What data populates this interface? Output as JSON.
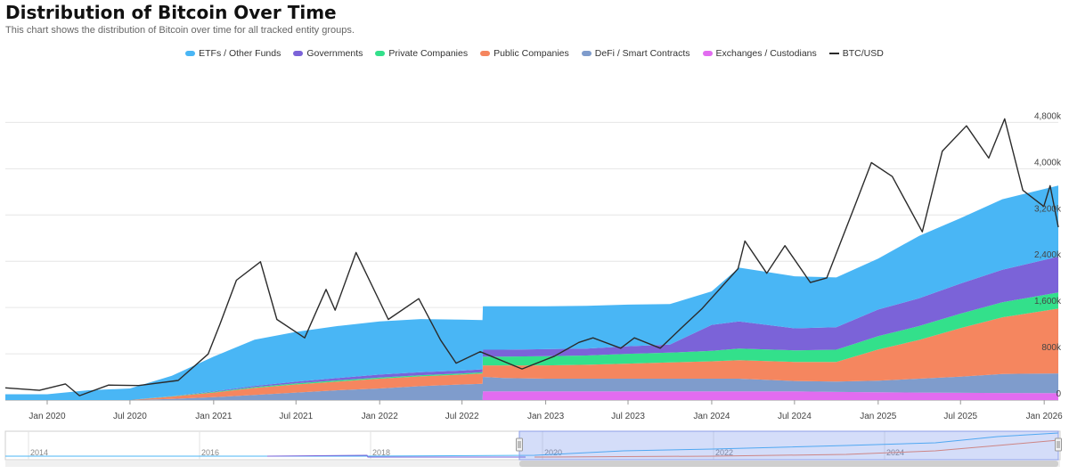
{
  "header": {
    "title": "Distribution of Bitcoin Over Time",
    "subtitle": "This chart shows the distribution of Bitcoin over time for all tracked entity groups."
  },
  "chart_data": {
    "type": "area",
    "title": "Distribution of Bitcoin Over Time",
    "x_unit": "date",
    "x_ticks": [
      "Jan 2020",
      "Jul 2020",
      "Jan 2021",
      "Jul 2021",
      "Jan 2022",
      "Jul 2022",
      "Jan 2023",
      "Jul 2023",
      "Jan 2024",
      "Jul 2024",
      "Jan 2025",
      "Jul 2025",
      "Jan 2026"
    ],
    "x_range": [
      "2019-10-01",
      "2026-02-01"
    ],
    "y_right_ticks": [
      "0",
      "800k",
      "1,600k",
      "2,400k",
      "3,200k",
      "4,000k",
      "4,800k"
    ],
    "y_range": [
      0,
      4800000
    ],
    "stacked": true,
    "grid": true,
    "legend_position": "top-center",
    "x": [
      "2019-10-01",
      "2020-01-01",
      "2020-04-01",
      "2020-07-01",
      "2020-10-01",
      "2021-01-01",
      "2021-04-01",
      "2021-07-01",
      "2021-10-01",
      "2022-01-01",
      "2022-04-01",
      "2022-07-01",
      "2022-08-15",
      "2022-08-16",
      "2022-10-01",
      "2023-01-01",
      "2023-04-01",
      "2023-07-01",
      "2023-10-01",
      "2024-01-01",
      "2024-03-01",
      "2024-07-01",
      "2024-10-01",
      "2025-01-01",
      "2025-04-01",
      "2025-07-01",
      "2025-10-01",
      "2026-02-01"
    ],
    "series": [
      {
        "name": "Exchanges / Custodians",
        "color": "#e26cf0",
        "values": [
          0,
          0,
          0,
          0,
          0,
          0,
          0,
          0,
          0,
          0,
          0,
          0,
          0,
          150000,
          150000,
          150000,
          150000,
          150000,
          150000,
          150000,
          150000,
          150000,
          140000,
          135000,
          130000,
          125000,
          122000,
          120000
        ]
      },
      {
        "name": "DeFi / Smart Contracts",
        "color": "#7f9ccc",
        "values": [
          0,
          0,
          0,
          0,
          20000,
          50000,
          90000,
          130000,
          170000,
          200000,
          240000,
          270000,
          280000,
          250000,
          230000,
          220000,
          220000,
          220000,
          220000,
          220000,
          220000,
          180000,
          180000,
          200000,
          240000,
          280000,
          330000,
          340000
        ]
      },
      {
        "name": "Public Companies",
        "color": "#f5865f",
        "values": [
          0,
          0,
          0,
          0,
          40000,
          80000,
          120000,
          140000,
          150000,
          170000,
          170000,
          170000,
          180000,
          200000,
          220000,
          230000,
          240000,
          260000,
          280000,
          300000,
          320000,
          330000,
          340000,
          540000,
          670000,
          840000,
          980000,
          1120000
        ]
      },
      {
        "name": "Private Companies",
        "color": "#33e08b",
        "values": [
          0,
          0,
          0,
          0,
          5000,
          10000,
          15000,
          18000,
          20000,
          20000,
          20000,
          20000,
          22000,
          150000,
          150000,
          160000,
          160000,
          170000,
          170000,
          180000,
          200000,
          200000,
          210000,
          230000,
          240000,
          250000,
          260000,
          280000
        ]
      },
      {
        "name": "Governments",
        "color": "#7b63d8",
        "values": [
          0,
          0,
          0,
          0,
          5000,
          10000,
          20000,
          30000,
          40000,
          50000,
          50000,
          50000,
          50000,
          120000,
          120000,
          120000,
          120000,
          130000,
          140000,
          450000,
          470000,
          380000,
          390000,
          460000,
          480000,
          520000,
          560000,
          620000
        ]
      },
      {
        "name": "ETFs / Other Funds",
        "color": "#49b6f5",
        "values": [
          100000,
          100000,
          170000,
          200000,
          350000,
          600000,
          800000,
          860000,
          900000,
          920000,
          920000,
          880000,
          850000,
          750000,
          750000,
          740000,
          740000,
          720000,
          700000,
          580000,
          930000,
          900000,
          860000,
          880000,
          1080000,
          1130000,
          1220000,
          1230000
        ]
      }
    ],
    "btc_usd": {
      "name": "BTC/USD",
      "color": "#2b2b2b",
      "points": [
        [
          "2019-10-01",
          8300
        ],
        [
          "2019-12-15",
          7200
        ],
        [
          "2020-02-10",
          10000
        ],
        [
          "2020-03-12",
          4900
        ],
        [
          "2020-05-15",
          9500
        ],
        [
          "2020-07-20",
          9300
        ],
        [
          "2020-10-15",
          11500
        ],
        [
          "2020-12-20",
          23000
        ],
        [
          "2021-01-15",
          36000
        ],
        [
          "2021-02-20",
          55000
        ],
        [
          "2021-04-14",
          63000
        ],
        [
          "2021-05-20",
          38000
        ],
        [
          "2021-07-20",
          30000
        ],
        [
          "2021-09-05",
          51000
        ],
        [
          "2021-09-25",
          42000
        ],
        [
          "2021-11-10",
          67000
        ],
        [
          "2022-01-20",
          38000
        ],
        [
          "2022-03-28",
          47000
        ],
        [
          "2022-05-15",
          29000
        ],
        [
          "2022-06-18",
          19000
        ],
        [
          "2022-08-10",
          24000
        ],
        [
          "2022-11-10",
          16500
        ],
        [
          "2023-01-20",
          22000
        ],
        [
          "2023-03-15",
          28000
        ],
        [
          "2023-04-15",
          30000
        ],
        [
          "2023-06-15",
          25500
        ],
        [
          "2023-07-15",
          30000
        ],
        [
          "2023-09-10",
          25500
        ],
        [
          "2023-10-25",
          34000
        ],
        [
          "2023-12-10",
          42500
        ],
        [
          "2024-02-28",
          60000
        ],
        [
          "2024-03-14",
          72000
        ],
        [
          "2024-05-01",
          58000
        ],
        [
          "2024-06-10",
          70000
        ],
        [
          "2024-08-05",
          54000
        ],
        [
          "2024-09-10",
          56000
        ],
        [
          "2024-11-12",
          88000
        ],
        [
          "2024-12-17",
          106000
        ],
        [
          "2025-02-01",
          100000
        ],
        [
          "2025-04-08",
          76000
        ],
        [
          "2025-05-22",
          111000
        ],
        [
          "2025-07-14",
          122000
        ],
        [
          "2025-09-01",
          108000
        ],
        [
          "2025-10-06",
          125000
        ],
        [
          "2025-11-15",
          94000
        ],
        [
          "2025-12-31",
          87000
        ],
        [
          "2026-01-14",
          96000
        ],
        [
          "2026-02-01",
          78000
        ]
      ]
    },
    "navigator": {
      "ticks": [
        "2014",
        "2016",
        "2018",
        "2020",
        "2022",
        "2024"
      ]
    }
  },
  "legend": [
    {
      "label": "ETFs / Other Funds",
      "color": "#49b6f5",
      "line": false
    },
    {
      "label": "Governments",
      "color": "#7b63d8",
      "line": false
    },
    {
      "label": "Private Companies",
      "color": "#33e08b",
      "line": false
    },
    {
      "label": "Public Companies",
      "color": "#f5865f",
      "line": false
    },
    {
      "label": "DeFi / Smart Contracts",
      "color": "#7f9ccc",
      "line": false
    },
    {
      "label": "Exchanges / Custodians",
      "color": "#e26cf0",
      "line": false
    },
    {
      "label": "BTC/USD",
      "color": "#2b2b2b",
      "line": true
    }
  ]
}
